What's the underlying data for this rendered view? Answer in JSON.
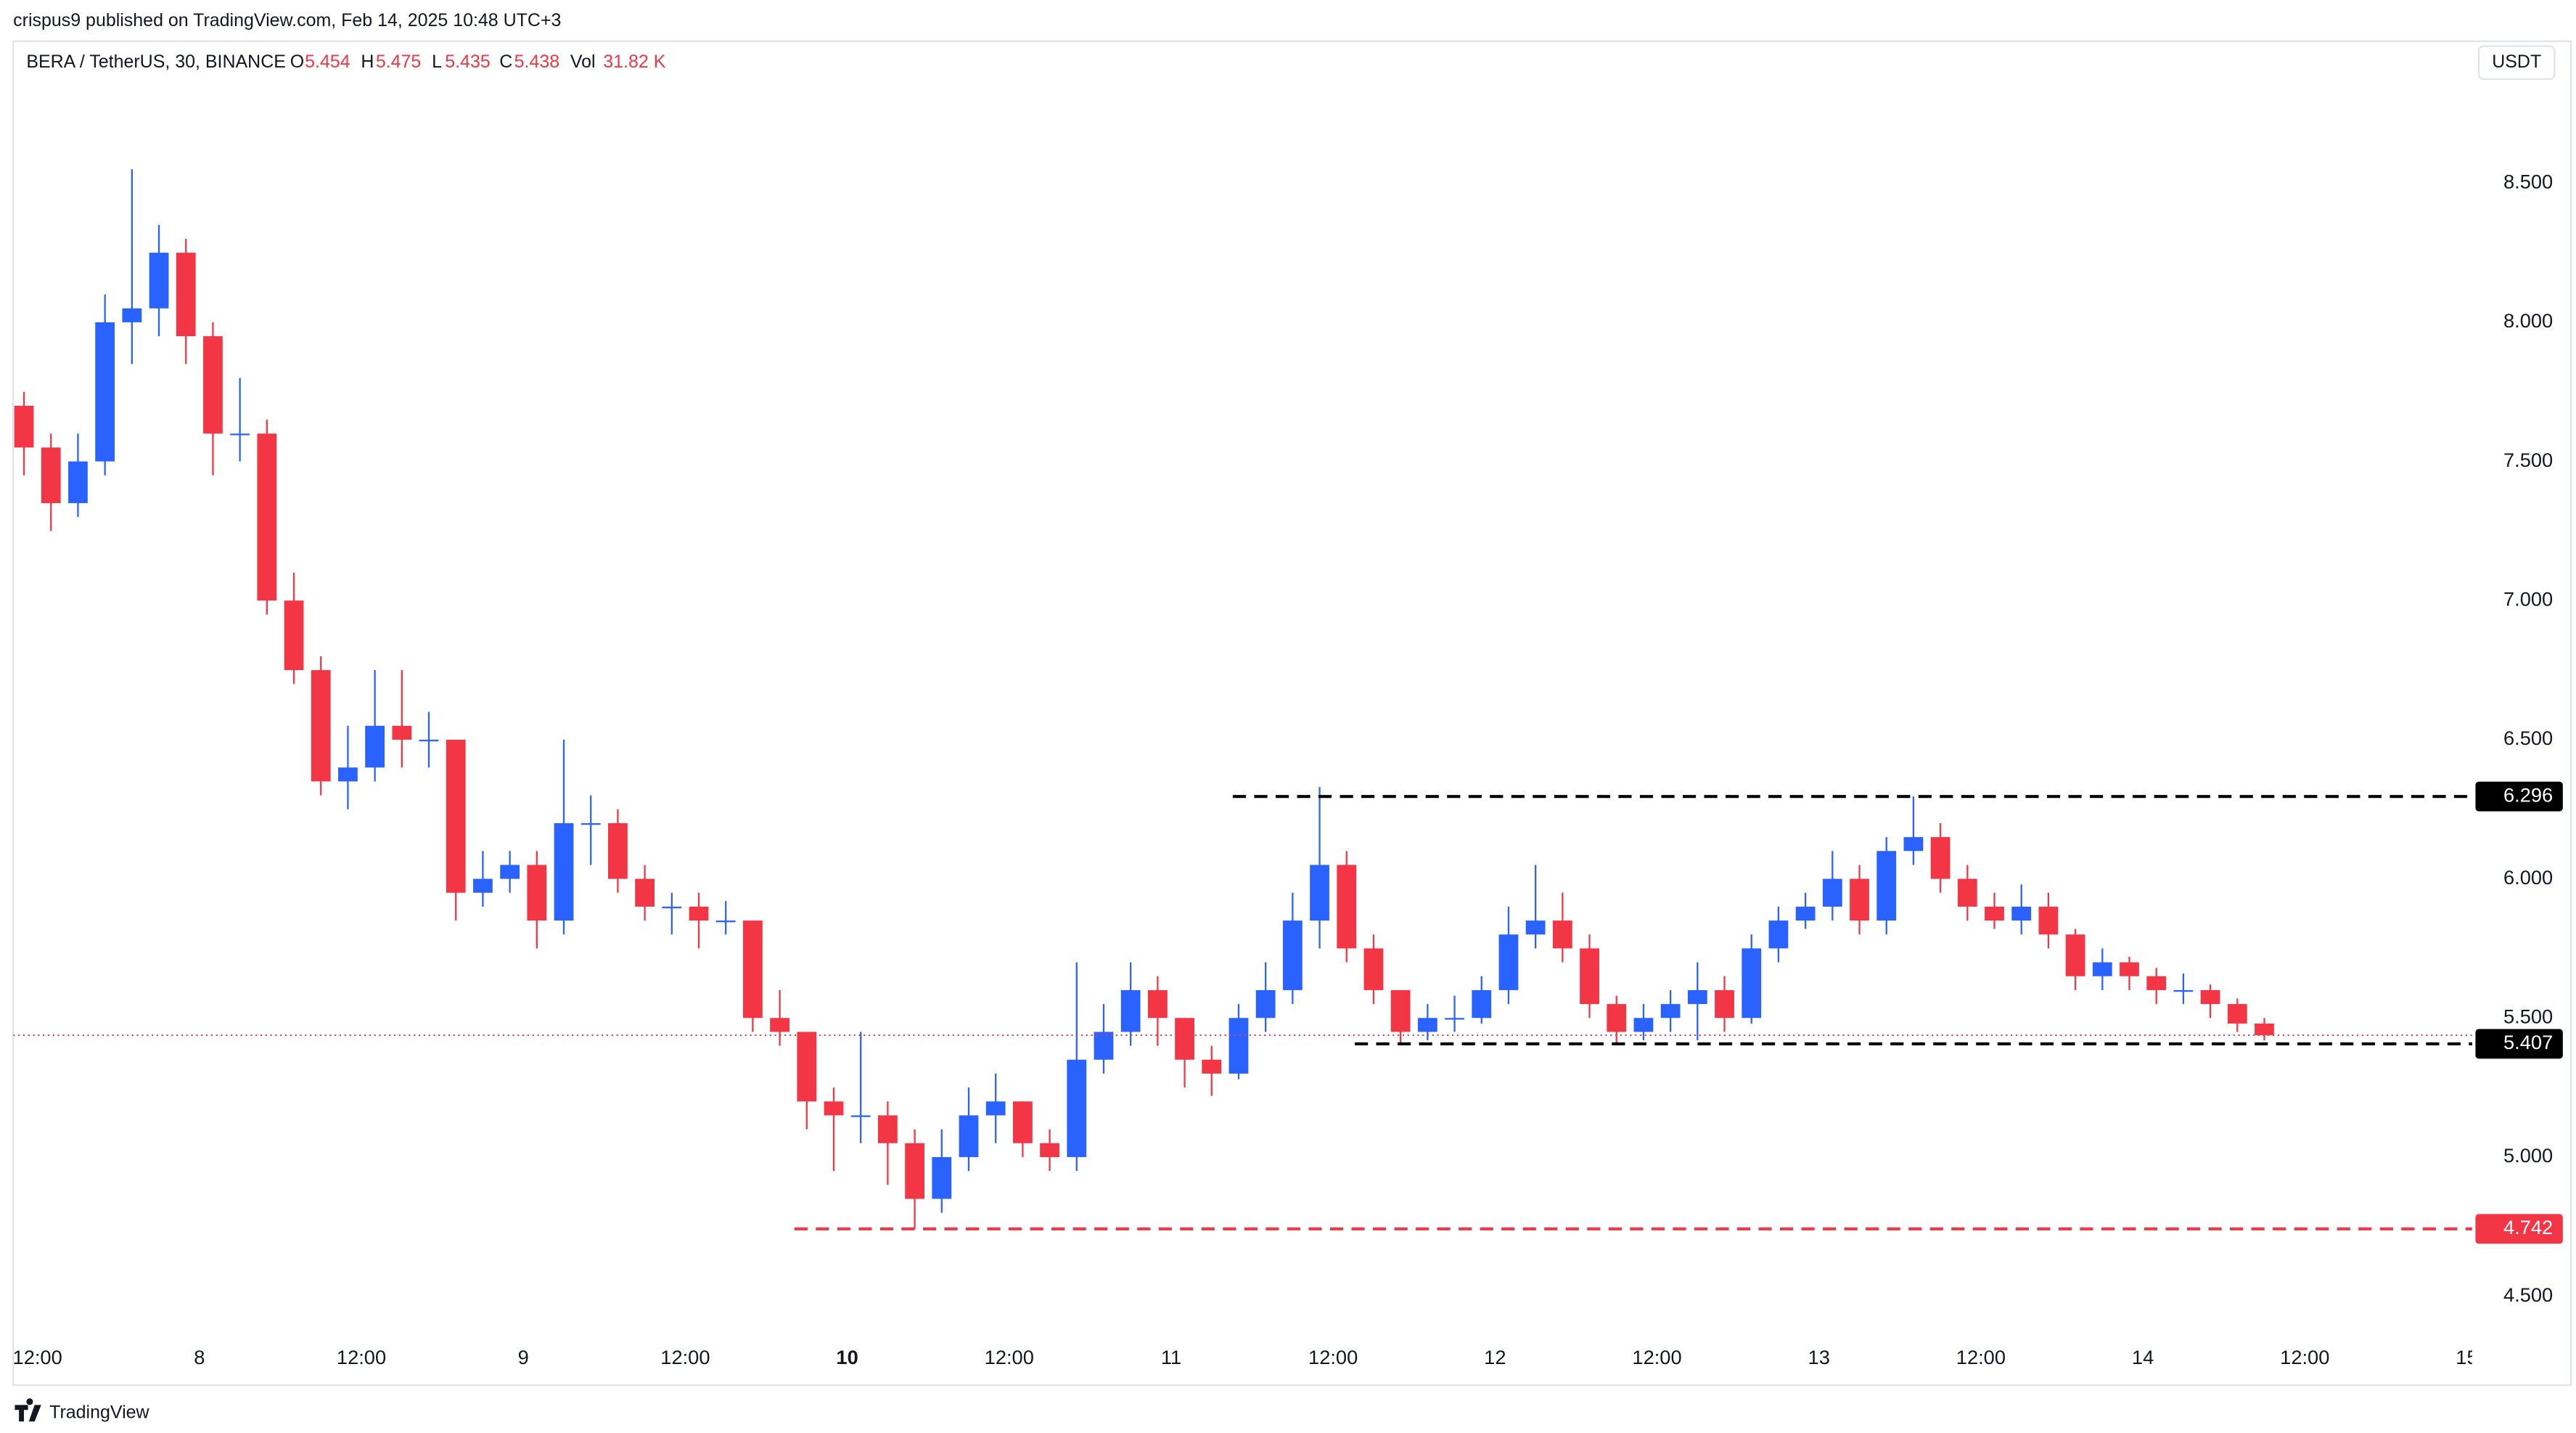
{
  "header": {
    "publisher": "crispus9 published on TradingView.com, Feb 14, 2025 10:48 UTC+3"
  },
  "footer": {
    "brand": "TradingView"
  },
  "chart_data": {
    "type": "candlestick",
    "symbol": "BERA / TetherUS, 30, BINANCE",
    "legend": {
      "open_label": "O",
      "open": 5.454,
      "high_label": "H",
      "high": 5.475,
      "low_label": "L",
      "low": 5.435,
      "close_label": "C",
      "close": 5.438,
      "volume_label": "Vol",
      "volume": "31.82 K"
    },
    "currency": "USDT",
    "up_color": "#2962ff",
    "down_color": "#f23645",
    "x": [
      11,
      13,
      15,
      17,
      19,
      21,
      23,
      25,
      27,
      29,
      31,
      33,
      35,
      37,
      39,
      41,
      43,
      45,
      47,
      49,
      51,
      53,
      55,
      57,
      59,
      61,
      63,
      65,
      67,
      69,
      71,
      73,
      75,
      77,
      79,
      81,
      83,
      85,
      87,
      89,
      91,
      93,
      95,
      97,
      99,
      101,
      103,
      105,
      107,
      109,
      111,
      113,
      115,
      117,
      119,
      121,
      123,
      125,
      127,
      129,
      131,
      133,
      135,
      137,
      139,
      141,
      143,
      145,
      147,
      149,
      151,
      153,
      155,
      157,
      159,
      161,
      163,
      165,
      167,
      169,
      171,
      173,
      175,
      177
    ],
    "open": [
      7.7,
      7.55,
      7.35,
      7.5,
      8.0,
      8.05,
      8.25,
      7.95,
      7.6,
      7.6,
      7.0,
      6.75,
      6.35,
      6.4,
      6.55,
      6.5,
      6.5,
      5.95,
      6.0,
      6.05,
      5.85,
      6.2,
      6.2,
      6.0,
      5.9,
      5.9,
      5.85,
      5.85,
      5.5,
      5.45,
      5.2,
      5.15,
      5.15,
      5.05,
      4.85,
      5.0,
      5.15,
      5.2,
      5.05,
      5.0,
      5.35,
      5.45,
      5.6,
      5.5,
      5.35,
      5.3,
      5.5,
      5.6,
      5.85,
      6.05,
      5.75,
      5.6,
      5.45,
      5.5,
      5.5,
      5.6,
      5.8,
      5.85,
      5.75,
      5.55,
      5.45,
      5.5,
      5.55,
      5.6,
      5.5,
      5.75,
      5.85,
      5.9,
      6.0,
      5.85,
      6.1,
      6.15,
      6.0,
      5.9,
      5.85,
      5.9,
      5.8,
      5.65,
      5.7,
      5.65,
      5.6,
      5.6,
      5.55,
      5.48
    ],
    "high": [
      7.75,
      7.6,
      7.6,
      8.1,
      8.55,
      8.35,
      8.3,
      8.0,
      7.8,
      7.65,
      7.1,
      6.8,
      6.55,
      6.75,
      6.75,
      6.6,
      6.5,
      6.1,
      6.1,
      6.1,
      6.5,
      6.3,
      6.25,
      6.05,
      5.95,
      5.95,
      5.92,
      5.85,
      5.6,
      5.45,
      5.25,
      5.45,
      5.2,
      5.1,
      5.1,
      5.25,
      5.3,
      5.2,
      5.1,
      5.7,
      5.55,
      5.7,
      5.65,
      5.5,
      5.4,
      5.55,
      5.7,
      5.95,
      6.33,
      6.1,
      5.8,
      5.6,
      5.55,
      5.58,
      5.65,
      5.9,
      6.05,
      5.95,
      5.8,
      5.58,
      5.55,
      5.6,
      5.7,
      5.65,
      5.8,
      5.9,
      5.95,
      6.1,
      6.05,
      6.15,
      6.296,
      6.2,
      6.05,
      5.95,
      5.98,
      5.95,
      5.82,
      5.75,
      5.72,
      5.68,
      5.66,
      5.62,
      5.57,
      5.5
    ],
    "low": [
      7.45,
      7.25,
      7.3,
      7.45,
      7.85,
      7.95,
      7.85,
      7.45,
      7.5,
      6.95,
      6.7,
      6.3,
      6.25,
      6.35,
      6.4,
      6.4,
      5.85,
      5.9,
      5.95,
      5.75,
      5.8,
      6.05,
      5.95,
      5.85,
      5.8,
      5.75,
      5.8,
      5.45,
      5.4,
      5.1,
      4.95,
      5.05,
      4.9,
      4.742,
      4.8,
      4.95,
      5.05,
      5.0,
      4.95,
      4.95,
      5.3,
      5.4,
      5.4,
      5.25,
      5.22,
      5.28,
      5.45,
      5.55,
      5.75,
      5.7,
      5.55,
      5.407,
      5.42,
      5.45,
      5.48,
      5.55,
      5.75,
      5.7,
      5.5,
      5.41,
      5.42,
      5.45,
      5.42,
      5.45,
      5.48,
      5.7,
      5.82,
      5.85,
      5.8,
      5.8,
      6.05,
      5.95,
      5.85,
      5.82,
      5.8,
      5.75,
      5.6,
      5.6,
      5.6,
      5.55,
      5.55,
      5.5,
      5.45,
      5.42
    ],
    "close": [
      7.55,
      7.35,
      7.5,
      8.0,
      8.05,
      8.25,
      7.95,
      7.6,
      7.6,
      7.0,
      6.75,
      6.35,
      6.4,
      6.55,
      6.5,
      6.5,
      5.95,
      6.0,
      6.05,
      5.85,
      6.2,
      6.2,
      6.0,
      5.9,
      5.9,
      5.85,
      5.85,
      5.5,
      5.45,
      5.2,
      5.15,
      5.15,
      5.05,
      4.85,
      5.0,
      5.15,
      5.2,
      5.05,
      5.0,
      5.35,
      5.45,
      5.6,
      5.5,
      5.35,
      5.3,
      5.5,
      5.6,
      5.85,
      6.05,
      5.75,
      5.6,
      5.45,
      5.5,
      5.5,
      5.6,
      5.8,
      5.85,
      5.75,
      5.55,
      5.45,
      5.5,
      5.55,
      5.6,
      5.5,
      5.75,
      5.85,
      5.9,
      6.0,
      5.85,
      6.1,
      6.15,
      6.0,
      5.9,
      5.85,
      5.9,
      5.8,
      5.65,
      5.7,
      5.65,
      5.6,
      5.6,
      5.55,
      5.48,
      5.438
    ],
    "levels": [
      {
        "value": 6.296,
        "color": "#000000"
      },
      {
        "value": 5.407,
        "color": "#000000"
      },
      {
        "value": 4.742,
        "color": "#f23645"
      }
    ],
    "xlim": [
      10.2,
      192.4
    ],
    "ylim": [
      4.37,
      9.01
    ],
    "yticks": [
      {
        "value": 4.5,
        "label": "4.500"
      },
      {
        "value": 5,
        "label": "5.000"
      },
      {
        "value": 5.5,
        "label": "5.500"
      },
      {
        "value": 6,
        "label": "6.000"
      },
      {
        "value": 6.5,
        "label": "6.500"
      },
      {
        "value": 7,
        "label": "7.000"
      },
      {
        "value": 7.5,
        "label": "7.500"
      },
      {
        "value": 8,
        "label": "8.000"
      },
      {
        "value": 8.5,
        "label": "8.500"
      }
    ],
    "xticks": [
      {
        "value": 12,
        "label": "12:00"
      },
      {
        "value": 24,
        "label": "8"
      },
      {
        "value": 36,
        "label": "12:00"
      },
      {
        "value": 48,
        "label": "9"
      },
      {
        "value": 60,
        "label": "12:00"
      },
      {
        "value": 72,
        "label": "10"
      },
      {
        "value": 84,
        "label": "12:00"
      },
      {
        "value": 96,
        "label": "11"
      },
      {
        "value": 108,
        "label": "12:00"
      },
      {
        "value": 120,
        "label": "12"
      },
      {
        "value": 132,
        "label": "12:00"
      },
      {
        "value": 144,
        "label": "13"
      },
      {
        "value": 156,
        "label": "12:00"
      },
      {
        "value": 168,
        "label": "14"
      },
      {
        "value": 180,
        "label": "12:00"
      },
      {
        "value": 192,
        "label": "15"
      }
    ]
  }
}
